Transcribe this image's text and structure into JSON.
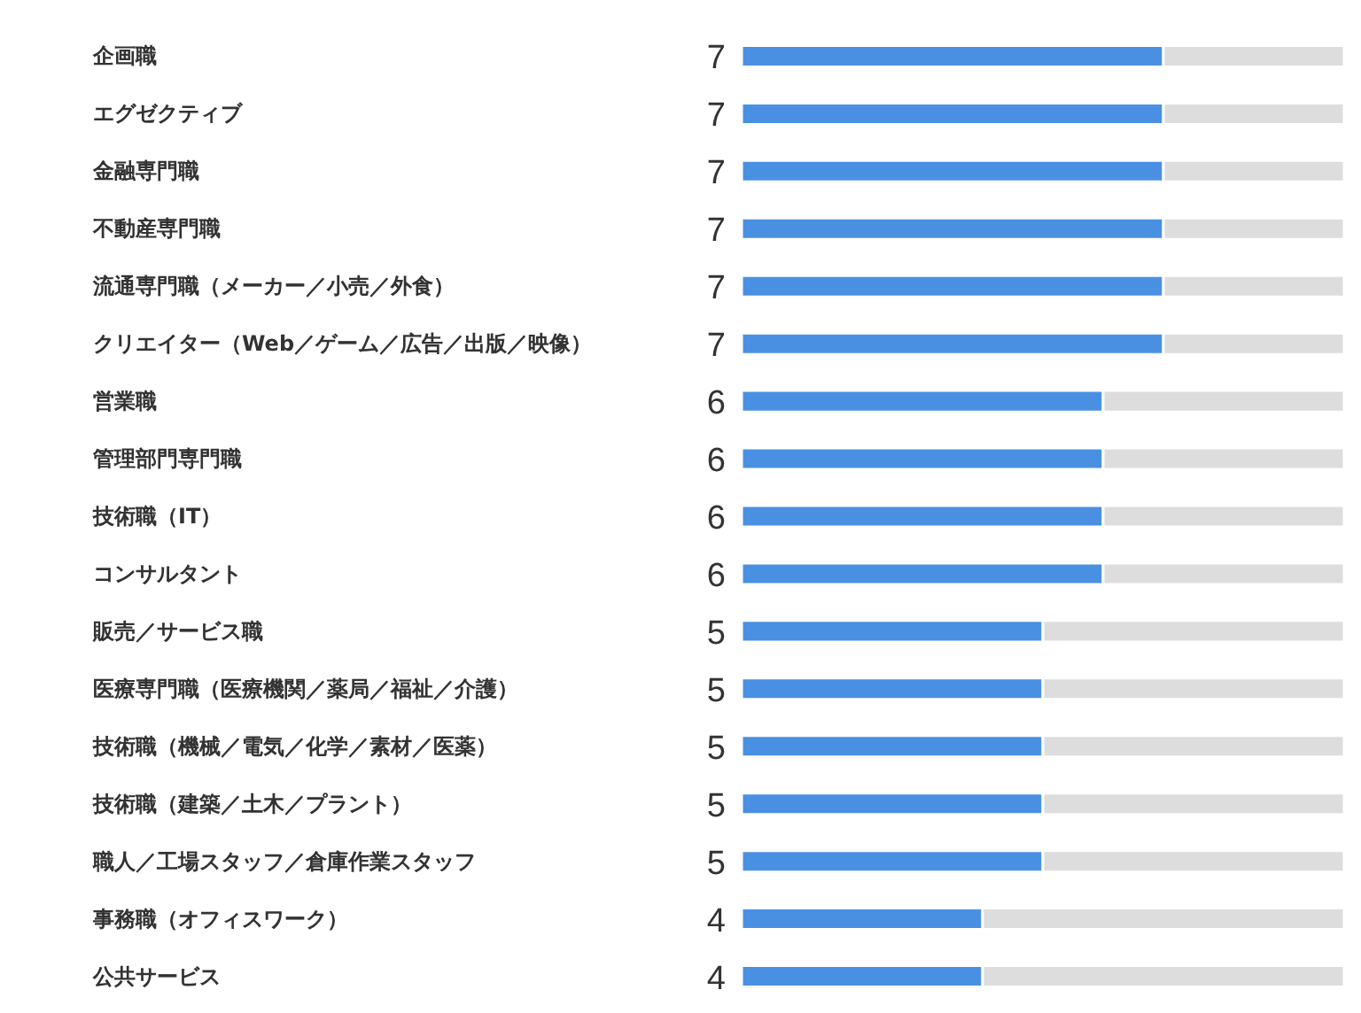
{
  "chart_data": {
    "type": "bar",
    "orientation": "horizontal",
    "stacked": true,
    "categories": [
      "企画職",
      "エグゼクティブ",
      "金融専門職",
      "不動産専門職",
      "流通専門職（メーカー／小売／外食）",
      "クリエイター（Web／ゲーム／広告／出版／映像）",
      "営業職",
      "管理部門専門職",
      "技術職（IT）",
      "コンサルタント",
      "販売／サービス職",
      "医療専門職（医療機関／薬局／福祉／介護）",
      "技術職（機械／電気／化学／素材／医薬）",
      "技術職（建築／土木／プラント）",
      "職人／工場スタッフ／倉庫作業スタッフ",
      "事務職（オフィスワーク）",
      "公共サービス"
    ],
    "series": [
      {
        "color": "#4a90e2",
        "values": [
          7,
          7,
          7,
          7,
          7,
          7,
          6,
          6,
          6,
          6,
          5,
          5,
          5,
          5,
          5,
          4,
          4
        ],
        "value_labels": [
          "7",
          "7",
          "7",
          "7",
          "7",
          "7",
          "6",
          "6",
          "6",
          "6",
          "5",
          "5",
          "5",
          "5",
          "5",
          "4",
          "4"
        ]
      },
      {
        "color": "#dddddd",
        "values": [
          3,
          3,
          3,
          3,
          3,
          3,
          4,
          4,
          4,
          4,
          5,
          5,
          5,
          5,
          5,
          6,
          6
        ]
      }
    ],
    "xlim": [
      0,
      10
    ],
    "tick_labels": "y"
  }
}
